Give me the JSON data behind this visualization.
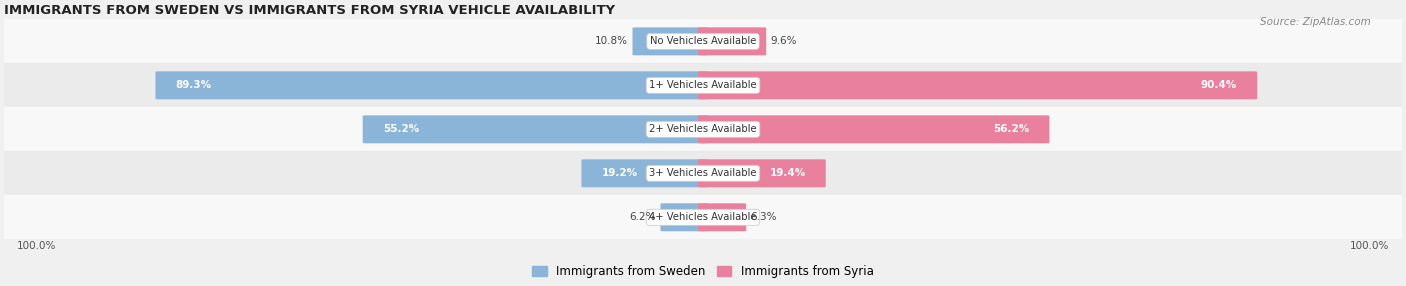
{
  "title": "IMMIGRANTS FROM SWEDEN VS IMMIGRANTS FROM SYRIA VEHICLE AVAILABILITY",
  "source": "Source: ZipAtlas.com",
  "categories": [
    "No Vehicles Available",
    "1+ Vehicles Available",
    "2+ Vehicles Available",
    "3+ Vehicles Available",
    "4+ Vehicles Available"
  ],
  "sweden_values": [
    10.8,
    89.3,
    55.2,
    19.2,
    6.2
  ],
  "syria_values": [
    9.6,
    90.4,
    56.2,
    19.4,
    6.3
  ],
  "sweden_color": "#8ab4d8",
  "syria_color": "#e8809e",
  "bg_row_odd": "#ebebeb",
  "bg_row_even": "#f8f8f8",
  "label_100_left": "100.0%",
  "label_100_right": "100.0%",
  "legend_sweden": "Immigrants from Sweden",
  "legend_syria": "Immigrants from Syria",
  "figsize": [
    14.06,
    2.86
  ],
  "dpi": 100
}
